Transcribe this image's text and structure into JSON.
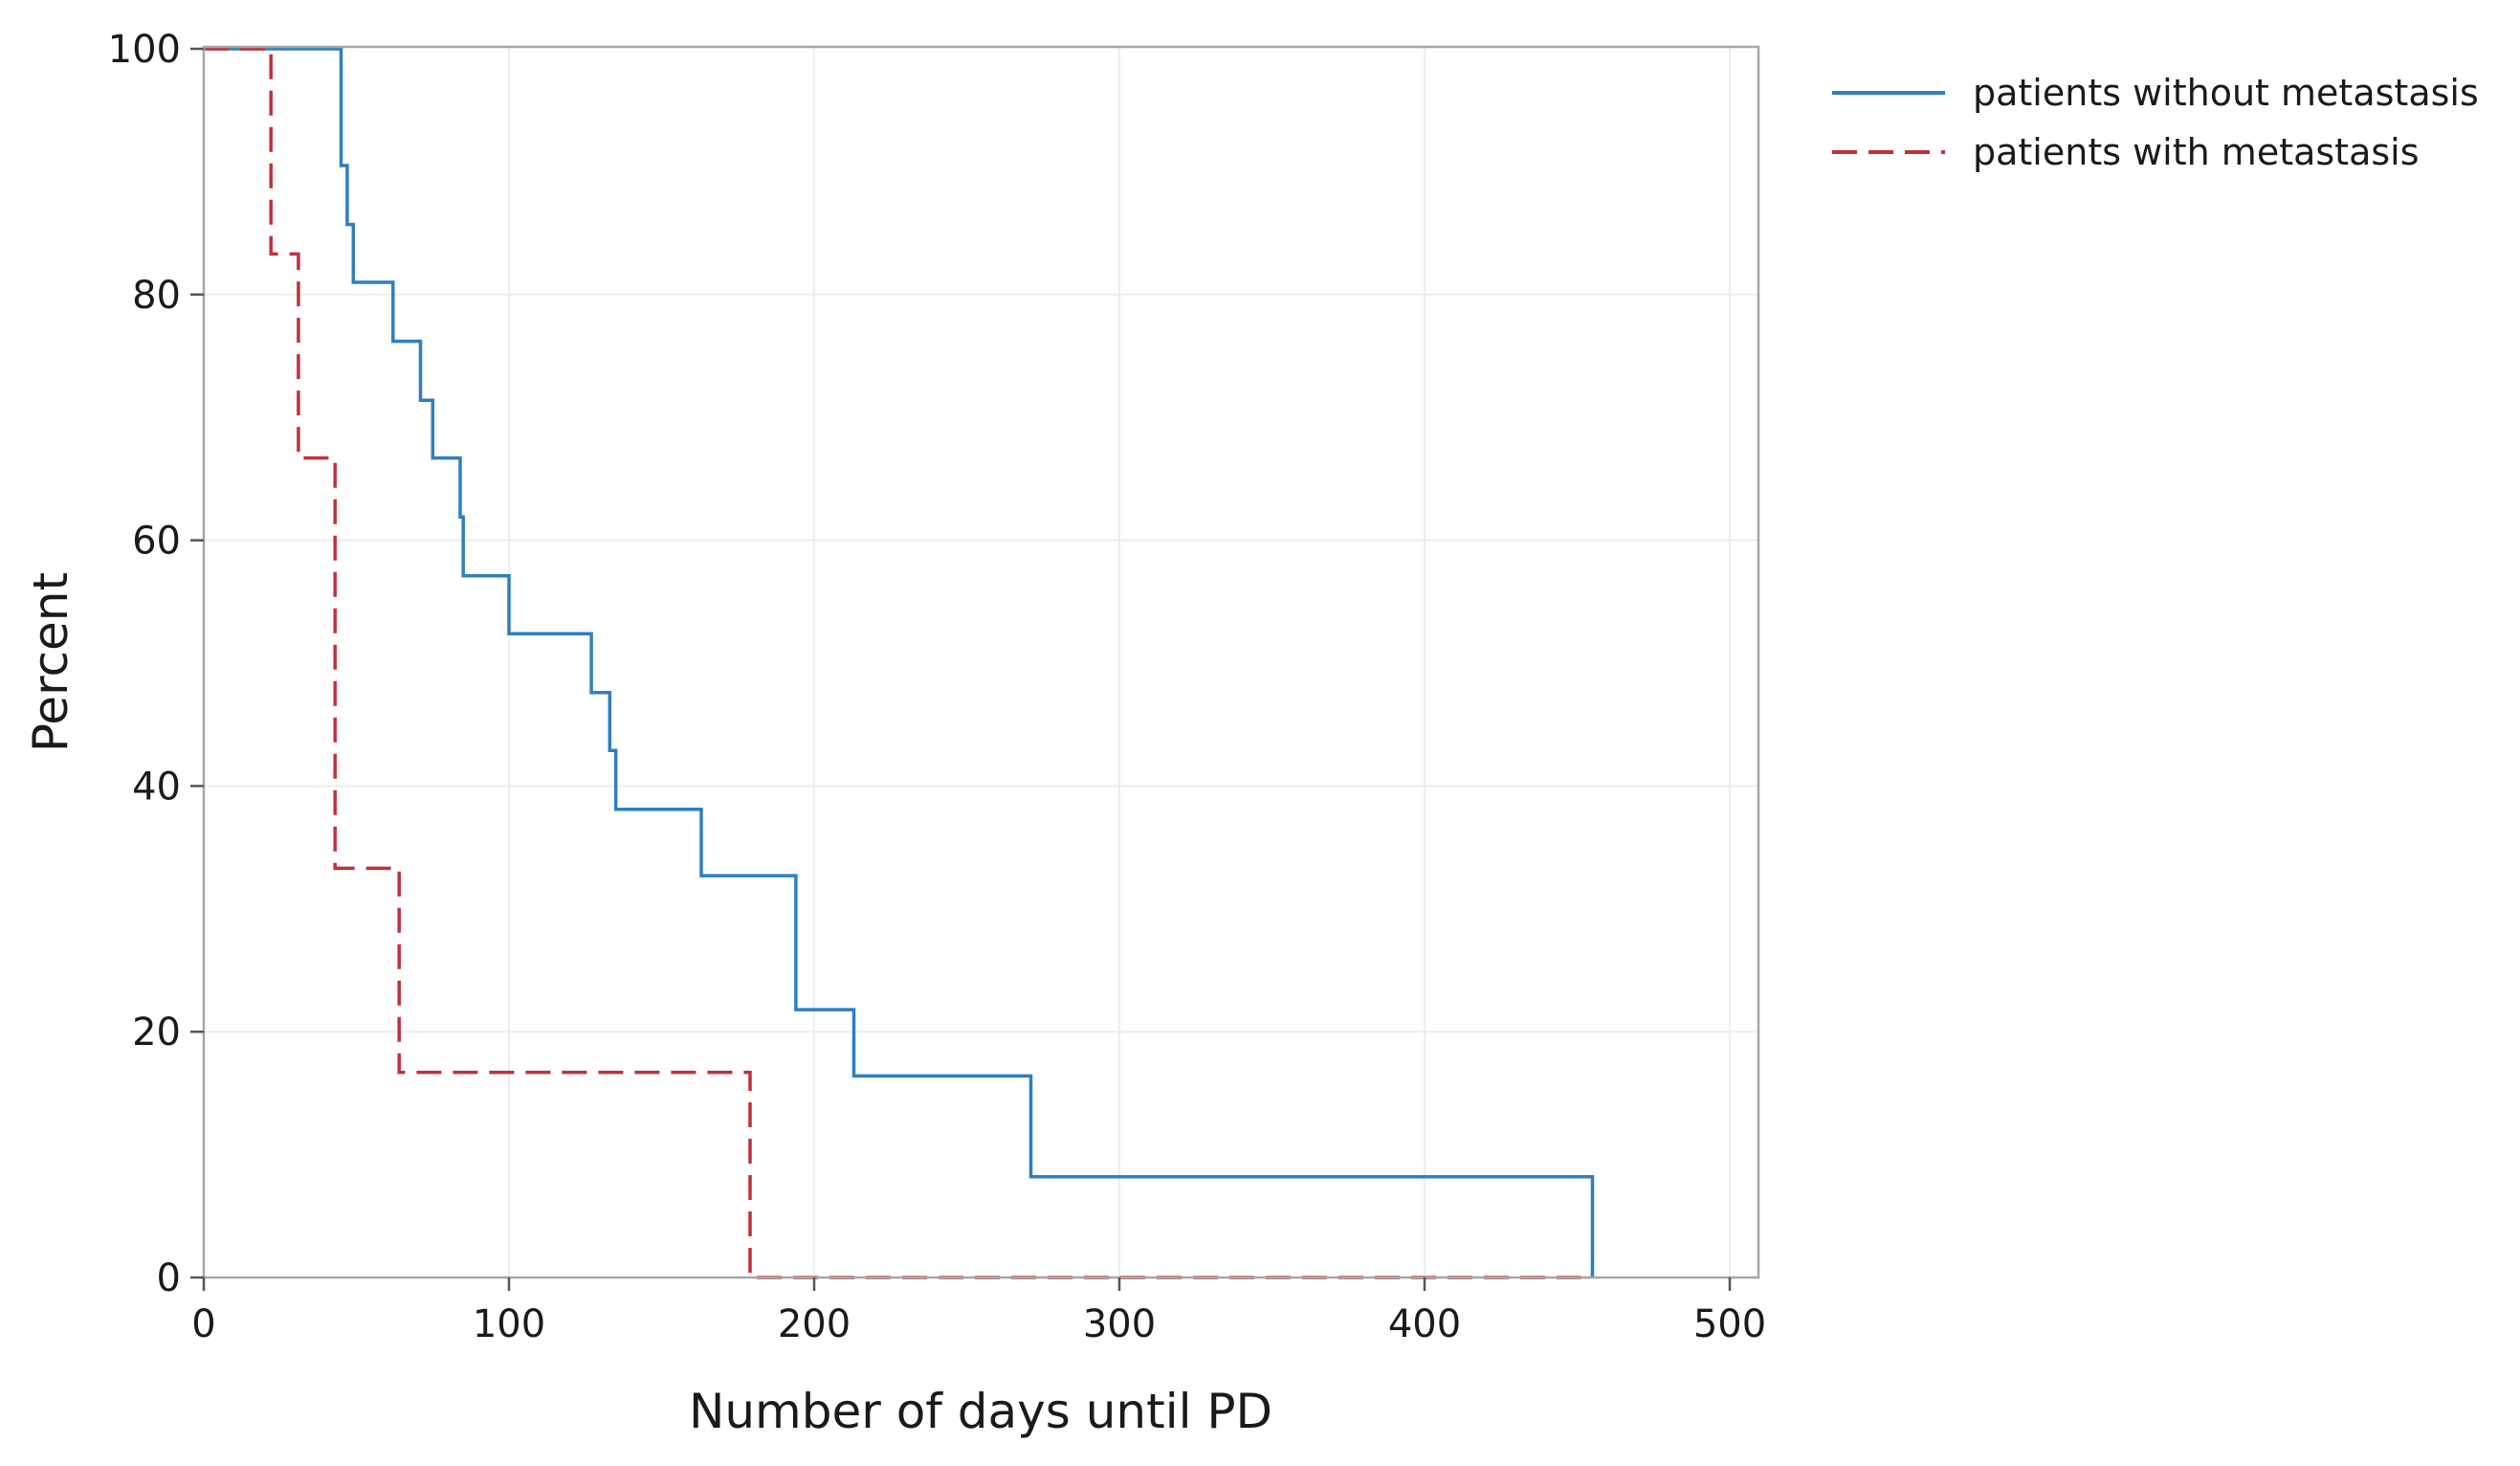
{
  "chart_data": {
    "type": "line",
    "subtype": "step",
    "title": "",
    "xlabel": "Number of days until PD",
    "ylabel": "Percent",
    "xlim": [
      0,
      510
    ],
    "ylim": [
      0,
      100
    ],
    "x_ticks": [
      0,
      100,
      200,
      300,
      400,
      500
    ],
    "y_ticks": [
      0,
      20,
      40,
      60,
      80,
      100
    ],
    "grid": true,
    "legend_position": "right-top-outside",
    "series": [
      {
        "name": "patients without metastasis",
        "color": "#2e7fc1",
        "style": "solid",
        "x": [
          0,
          44,
          45,
          47,
          49,
          62,
          71,
          75,
          84,
          85,
          100,
          127,
          133,
          135,
          163,
          194,
          213,
          271,
          455,
          455
        ],
        "y": [
          100,
          100,
          90.5,
          85.7,
          81,
          76.2,
          71.4,
          66.7,
          61.9,
          57.1,
          52.4,
          47.6,
          42.9,
          38.1,
          32.7,
          21.8,
          16.4,
          8.2,
          8.2,
          0
        ]
      },
      {
        "name": "patients with metastasis",
        "color": "#c0313c",
        "style": "dashed",
        "x": [
          0,
          22,
          31,
          41,
          43,
          64,
          179,
          455
        ],
        "y": [
          100,
          83.3,
          66.7,
          66.7,
          33.3,
          16.7,
          0,
          0
        ]
      }
    ]
  }
}
